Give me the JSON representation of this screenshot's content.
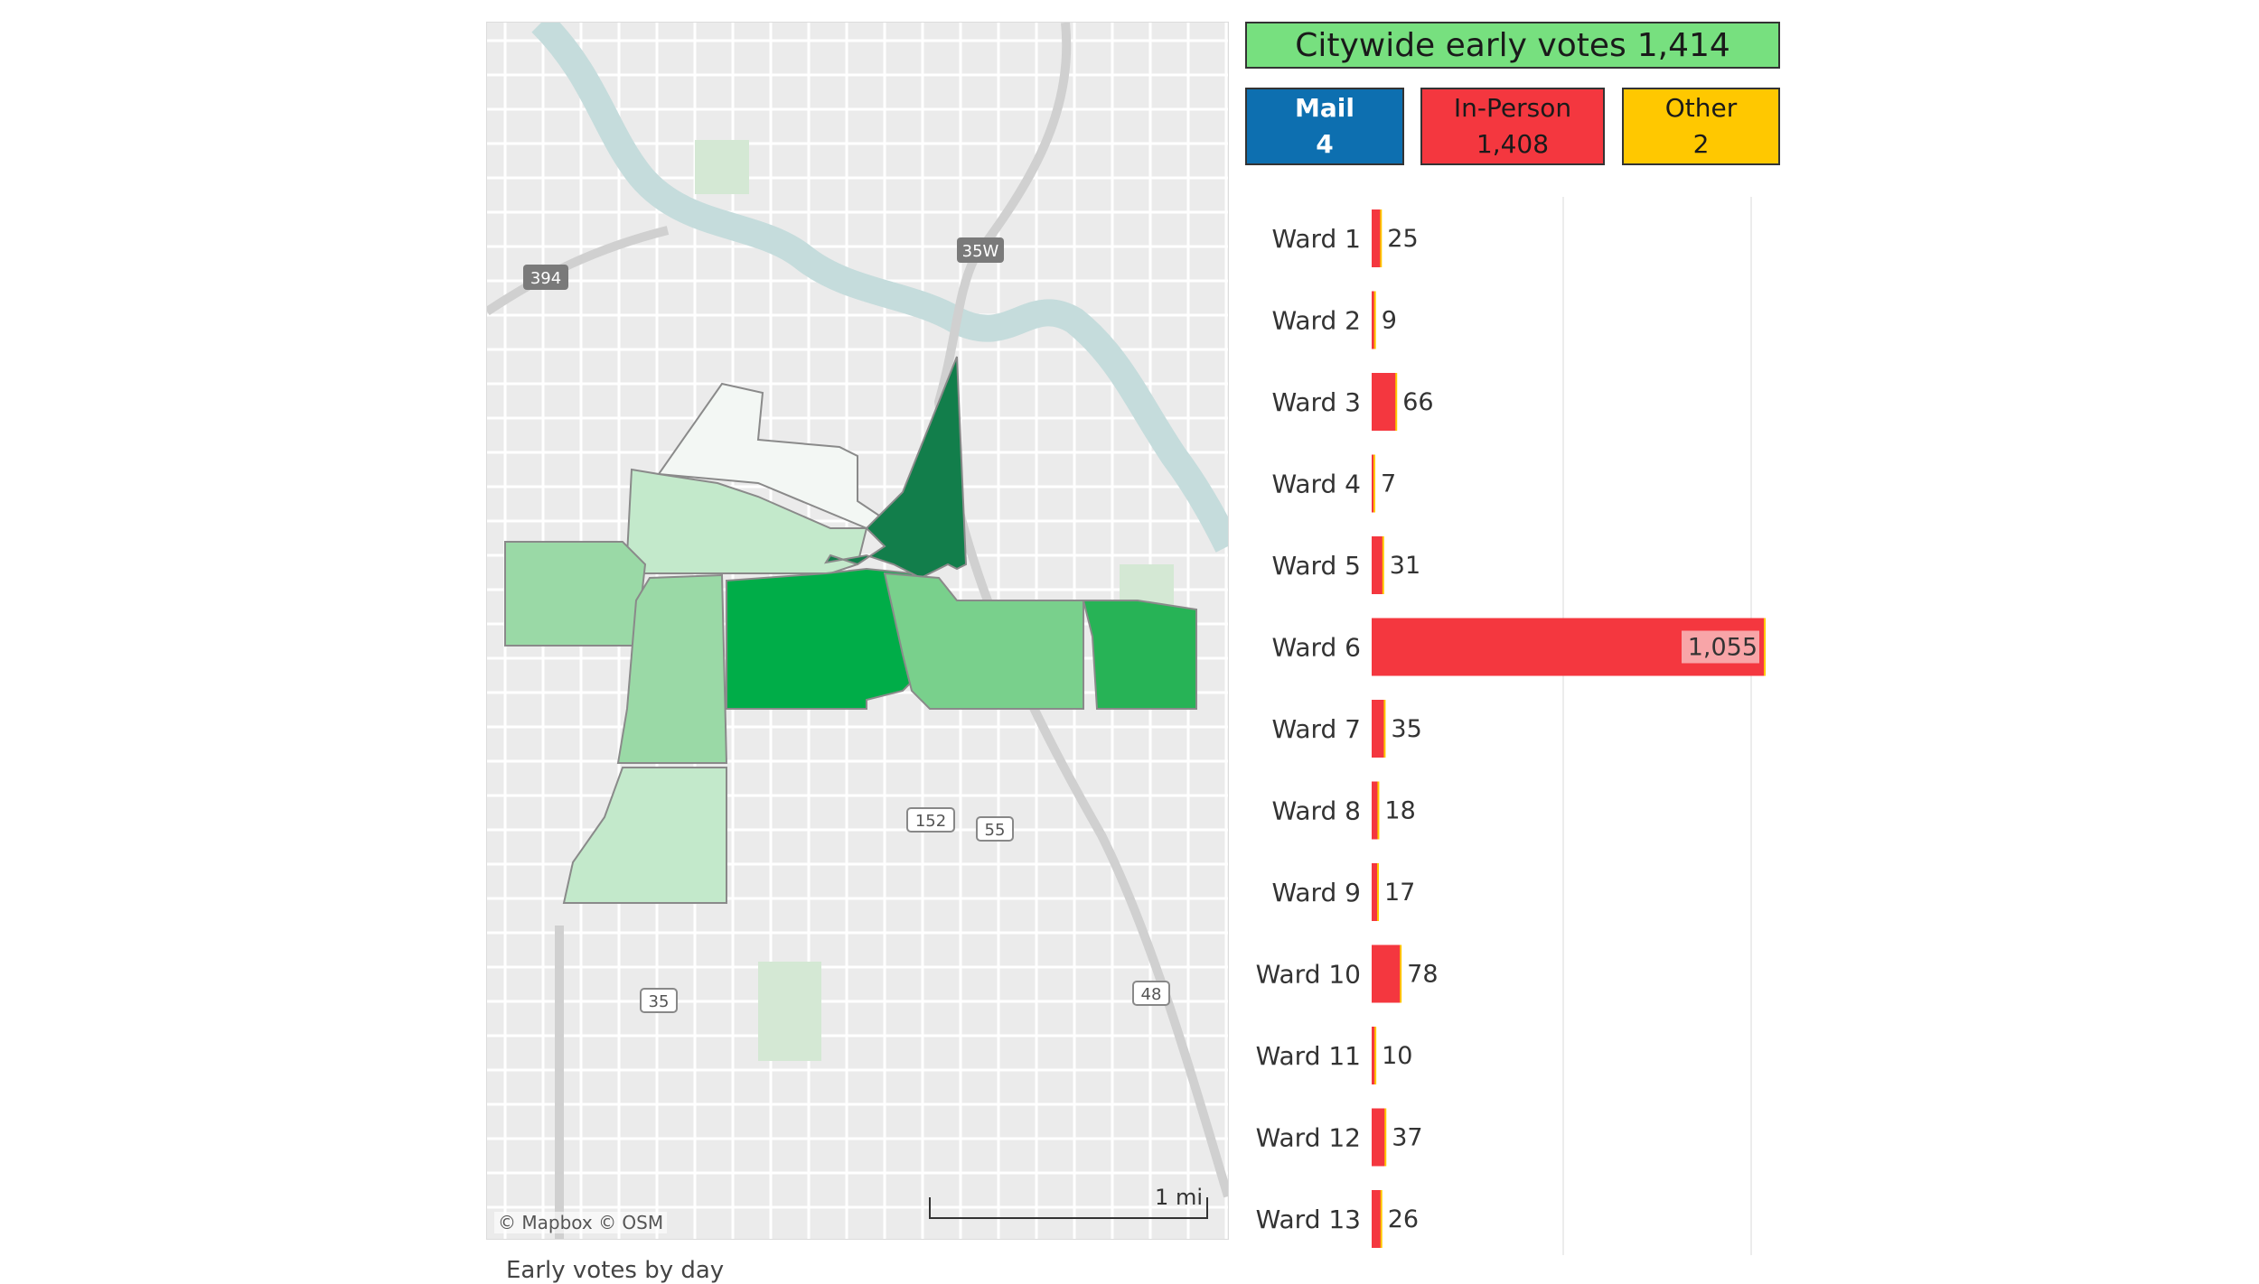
{
  "summary": {
    "total_label": "Citywide early votes",
    "total_value": "1,414",
    "mail": {
      "label": "Mail",
      "value": "4"
    },
    "in_person": {
      "label": "In-Person",
      "value": "1,408"
    },
    "other": {
      "label": "Other",
      "value": "2"
    }
  },
  "colors": {
    "mail": "#0d6fb0",
    "in_person": "#f4373f",
    "other": "#ffc800",
    "total": "#77e07f"
  },
  "map": {
    "attribution": "© Mapbox © OSM",
    "scale_label": "1 mi",
    "road_shields": [
      "394",
      "35W",
      "152",
      "55",
      "35",
      "48"
    ]
  },
  "chart_data": {
    "type": "bar",
    "orientation": "horizontal",
    "categories": [
      "Ward 1",
      "Ward 2",
      "Ward 3",
      "Ward 4",
      "Ward 5",
      "Ward 6",
      "Ward 7",
      "Ward 8",
      "Ward 9",
      "Ward 10",
      "Ward 11",
      "Ward 12",
      "Ward 13"
    ],
    "values": [
      25,
      9,
      66,
      7,
      31,
      1055,
      35,
      18,
      17,
      78,
      10,
      37,
      26
    ],
    "value_labels": [
      "25",
      "9",
      "66",
      "7",
      "31",
      "1,055",
      "35",
      "18",
      "17",
      "78",
      "10",
      "37",
      "26"
    ],
    "bar_color": "#f4373f",
    "gridlines": true,
    "xlim": [
      0,
      1055
    ]
  },
  "footer_text": "Early votes by day"
}
